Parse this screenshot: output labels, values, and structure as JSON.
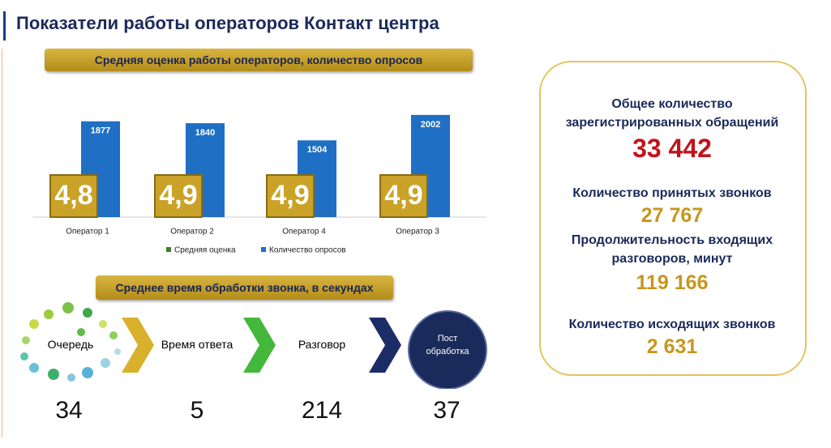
{
  "header": {
    "title": "Показатели работы операторов Контакт центра"
  },
  "chart_banner": "Средняя оценка работы операторов, количество опросов",
  "chart_data": {
    "type": "bar",
    "categories": [
      "Оператор 1",
      "Оператор 2",
      "Оператор 4",
      "Оператор 3"
    ],
    "series": [
      {
        "name": "Средняя оценка",
        "color": "#c9a227",
        "legend_color": "#3a7d2c",
        "values": [
          4.8,
          4.9,
          4.9,
          4.9
        ],
        "value_labels": [
          "4,8",
          "4,9",
          "4,9",
          "4,9"
        ]
      },
      {
        "name": "Количество опросов",
        "color": "#1f6fc5",
        "values": [
          1877,
          1840,
          1504,
          2002
        ]
      }
    ]
  },
  "process": {
    "title": "Среднее время обработки звонка, в секундах",
    "steps": [
      {
        "label": "Очередь",
        "value": "34"
      },
      {
        "label": "Время ответа",
        "value": "5"
      },
      {
        "label": "Разговор",
        "value": "214"
      },
      {
        "label": "Пост обработка",
        "value": "37"
      }
    ]
  },
  "stats": [
    {
      "label": "Общее количество зарегистрированных обращений",
      "value": "33 442"
    },
    {
      "label": "Количество принятых звонков",
      "value": "27 767"
    },
    {
      "label": "Продолжительность входящих разговоров, минут",
      "value": "119 166"
    },
    {
      "label": "Количество исходящих звонков",
      "value": "2 631"
    }
  ]
}
